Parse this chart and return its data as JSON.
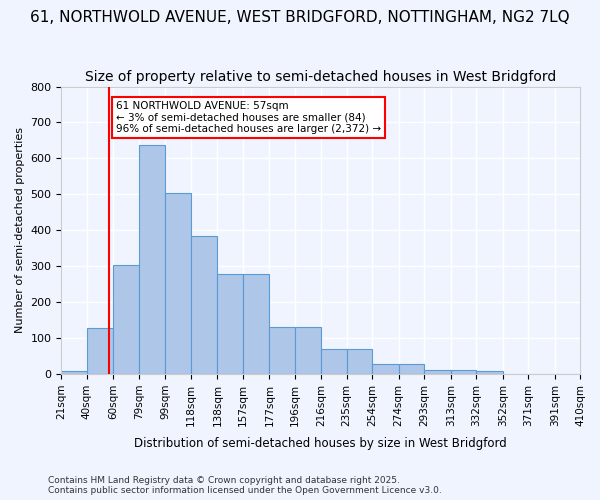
{
  "title": "61, NORTHWOLD AVENUE, WEST BRIDGFORD, NOTTINGHAM, NG2 7LQ",
  "subtitle": "Size of property relative to semi-detached houses in West Bridgford",
  "xlabel": "Distribution of semi-detached houses by size in West Bridgford",
  "ylabel": "Number of semi-detached properties",
  "bin_labels": [
    "21sqm",
    "40sqm",
    "60sqm",
    "79sqm",
    "99sqm",
    "118sqm",
    "138sqm",
    "157sqm",
    "177sqm",
    "196sqm",
    "216sqm",
    "235sqm",
    "254sqm",
    "274sqm",
    "293sqm",
    "313sqm",
    "332sqm",
    "352sqm",
    "371sqm",
    "391sqm",
    "410sqm"
  ],
  "bin_edges": [
    21,
    40,
    60,
    79,
    99,
    118,
    138,
    157,
    177,
    196,
    216,
    235,
    254,
    274,
    293,
    313,
    332,
    352,
    371,
    391,
    410
  ],
  "bar_heights": [
    8,
    128,
    303,
    638,
    503,
    383,
    278,
    278,
    130,
    130,
    70,
    70,
    27,
    27,
    10,
    10,
    8,
    0,
    0,
    0,
    0
  ],
  "bar_color": "#aec6e8",
  "bar_edge_color": "#5b9bd5",
  "property_size": 57,
  "property_line_color": "red",
  "annotation_text": "61 NORTHWOLD AVENUE: 57sqm\n← 3% of semi-detached houses are smaller (84)\n96% of semi-detached houses are larger (2,372) →",
  "annotation_box_color": "white",
  "annotation_box_edge_color": "red",
  "footer_text": "Contains HM Land Registry data © Crown copyright and database right 2025.\nContains public sector information licensed under the Open Government Licence v3.0.",
  "ylim": [
    0,
    800
  ],
  "yticks": [
    0,
    100,
    200,
    300,
    400,
    500,
    600,
    700,
    800
  ],
  "bg_color": "#f0f4ff",
  "grid_color": "white",
  "title_fontsize": 11,
  "subtitle_fontsize": 10
}
